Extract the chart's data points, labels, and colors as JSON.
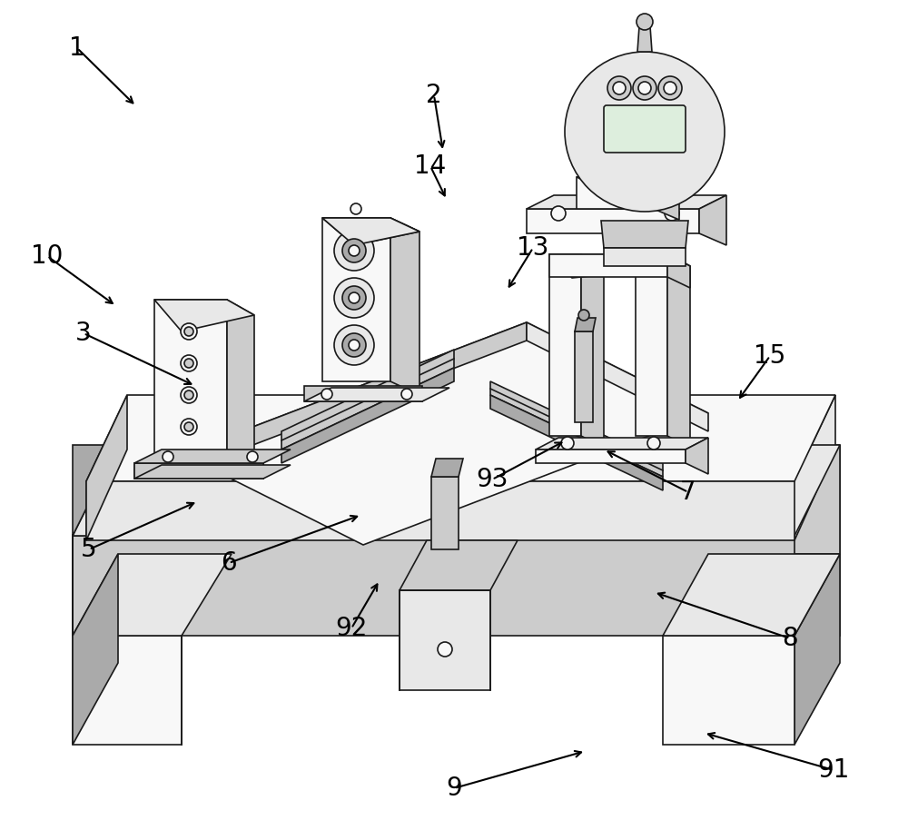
{
  "bg": "#ffffff",
  "lc": "#1a1a1a",
  "lw": 1.2,
  "c_white": "#f8f8f8",
  "c_light": "#e8e8e8",
  "c_mid": "#cccccc",
  "c_dark": "#aaaaaa",
  "c_vdark": "#888888",
  "labels": [
    "1",
    "2",
    "3",
    "5",
    "6",
    "7",
    "8",
    "9",
    "10",
    "13",
    "14",
    "15",
    "91",
    "92",
    "93"
  ],
  "lx": [
    85,
    478,
    92,
    98,
    252,
    758,
    870,
    500,
    52,
    587,
    474,
    848,
    918,
    387,
    542
  ],
  "ly": [
    872,
    820,
    558,
    320,
    305,
    383,
    222,
    57,
    643,
    652,
    742,
    533,
    77,
    233,
    397
  ],
  "tx": [
    150,
    488,
    215,
    218,
    398,
    665,
    720,
    645,
    128,
    558,
    492,
    812,
    775,
    418,
    623
  ],
  "ty": [
    808,
    758,
    500,
    373,
    358,
    430,
    273,
    98,
    588,
    605,
    705,
    483,
    118,
    286,
    440
  ]
}
